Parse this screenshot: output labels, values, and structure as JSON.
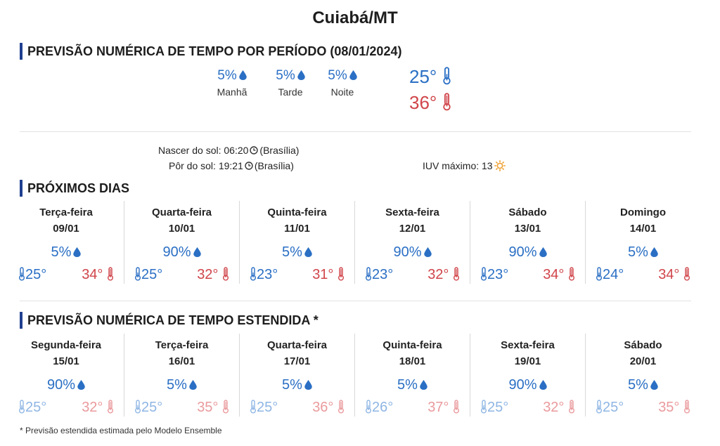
{
  "city": "Cuiabá/MT",
  "sections": {
    "period_title": "PREVISÃO NUMÉRICA DE TEMPO POR PERÍODO (08/01/2024)",
    "next_title": "PRÓXIMOS DIAS",
    "extended_title": "PREVISÃO NUMÉRICA DE TEMPO ESTENDIDA *"
  },
  "periods": [
    {
      "pct": "5%",
      "label": "Manhã"
    },
    {
      "pct": "5%",
      "label": "Tarde"
    },
    {
      "pct": "5%",
      "label": "Noite"
    }
  ],
  "today": {
    "min": "25°",
    "max": "36°"
  },
  "sun": {
    "sunrise_label": "Nascer do sol:",
    "sunrise_time": "06:20",
    "sunset_label": "Pôr do sol:",
    "sunset_time": "19:21",
    "timezone": "(Brasília)",
    "uv_label": "IUV máximo:",
    "uv_value": "13"
  },
  "next_days": [
    {
      "name": "Terça-feira",
      "date": "09/01",
      "rain": "5%",
      "min": "25°",
      "max": "34°"
    },
    {
      "name": "Quarta-feira",
      "date": "10/01",
      "rain": "90%",
      "min": "25°",
      "max": "32°"
    },
    {
      "name": "Quinta-feira",
      "date": "11/01",
      "rain": "5%",
      "min": "23°",
      "max": "31°"
    },
    {
      "name": "Sexta-feira",
      "date": "12/01",
      "rain": "90%",
      "min": "23°",
      "max": "32°"
    },
    {
      "name": "Sábado",
      "date": "13/01",
      "rain": "90%",
      "min": "23°",
      "max": "34°"
    },
    {
      "name": "Domingo",
      "date": "14/01",
      "rain": "5%",
      "min": "24°",
      "max": "34°"
    }
  ],
  "extended_days": [
    {
      "name": "Segunda-feira",
      "date": "15/01",
      "rain": "90%",
      "min": "25°",
      "max": "32°"
    },
    {
      "name": "Terça-feira",
      "date": "16/01",
      "rain": "5%",
      "min": "25°",
      "max": "35°"
    },
    {
      "name": "Quarta-feira",
      "date": "17/01",
      "rain": "5%",
      "min": "25°",
      "max": "36°"
    },
    {
      "name": "Quinta-feira",
      "date": "18/01",
      "rain": "5%",
      "min": "26°",
      "max": "37°"
    },
    {
      "name": "Sexta-feira",
      "date": "19/01",
      "rain": "90%",
      "min": "25°",
      "max": "32°"
    },
    {
      "name": "Sábado",
      "date": "20/01",
      "rain": "5%",
      "min": "25°",
      "max": "35°"
    }
  ],
  "footnote": "* Previsão estendida estimada pelo Modelo Ensemble",
  "colors": {
    "rain": "#2a6fc4",
    "min": "#2a6fc4",
    "max": "#d0454a",
    "accent": "#1f3f8f"
  },
  "icons": {
    "rain": "water-drop-icon",
    "min": "thermometer-cold-icon",
    "max": "thermometer-hot-icon",
    "clock": "clock-icon",
    "uv": "sun-icon"
  }
}
